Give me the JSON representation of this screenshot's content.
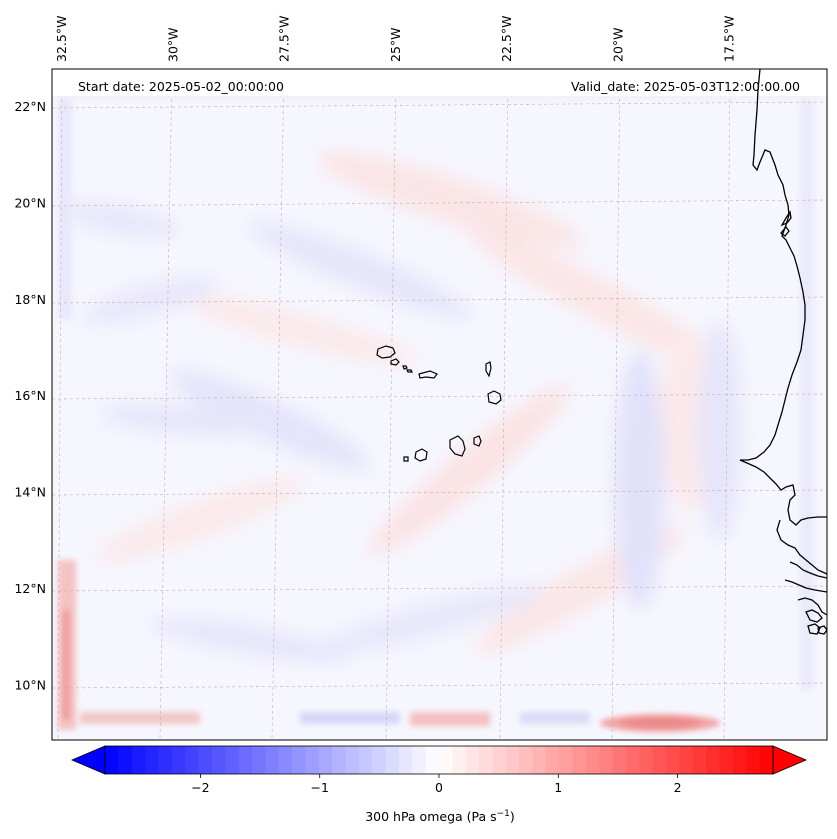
{
  "map": {
    "start_date": "Start date: 2025-05-02_00:00:00",
    "valid_date": "Valid_date: 2025-05-03T12:00:00.00",
    "lon_labels": [
      {
        "text": "32.5°W",
        "lon": -32.5
      },
      {
        "text": "30°W",
        "lon": -30
      },
      {
        "text": "27.5°W",
        "lon": -27.5
      },
      {
        "text": "25°W",
        "lon": -25
      },
      {
        "text": "22.5°W",
        "lon": -22.5
      },
      {
        "text": "20°W",
        "lon": -20
      },
      {
        "text": "17.5°W",
        "lon": -17.5
      }
    ],
    "lat_labels": [
      {
        "text": "22°N",
        "lat": 22
      },
      {
        "text": "20°N",
        "lat": 20
      },
      {
        "text": "18°N",
        "lat": 18
      },
      {
        "text": "16°N",
        "lat": 16
      },
      {
        "text": "14°N",
        "lat": 14
      },
      {
        "text": "12°N",
        "lat": 12
      },
      {
        "text": "10°N",
        "lat": 10
      }
    ],
    "colormap": "bwr",
    "coastline_color": "#000000"
  },
  "colorbar": {
    "label": "300 hPa omega (Pa s",
    "label_sup": "−1",
    "label_end": ")",
    "range": [
      -2.8,
      2.8
    ],
    "ticks": [
      {
        "value": -2,
        "text": "−2"
      },
      {
        "value": -1,
        "text": "−1"
      },
      {
        "value": 0,
        "text": "0"
      },
      {
        "value": 1,
        "text": "1"
      },
      {
        "value": 2,
        "text": "2"
      }
    ],
    "extend": "both"
  }
}
